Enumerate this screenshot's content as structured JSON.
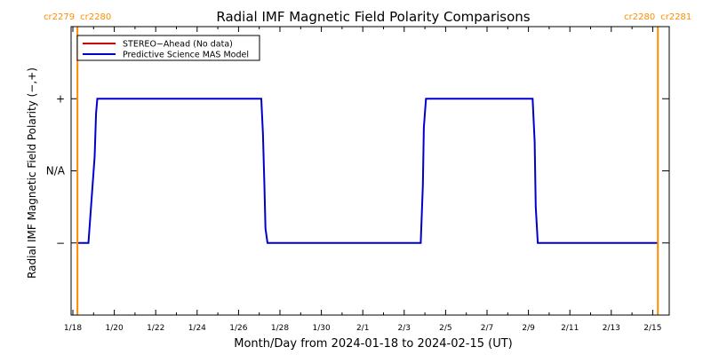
{
  "chart_data": {
    "type": "line",
    "title": "Radial IMF Magnetic Field Polarity Comparisons",
    "xlabel": "Month/Day from 2024-01-18 to 2024-02-15 (UT)",
    "ylabel": "Radial IMF Magnetic Field Polarity (−,+)",
    "x_start_date": "2024-01-18",
    "xlim_days": [
      0,
      29
    ],
    "x_ticks": [
      {
        "day": 0,
        "label": "1/18"
      },
      {
        "day": 2,
        "label": "1/20"
      },
      {
        "day": 4,
        "label": "1/22"
      },
      {
        "day": 6,
        "label": "1/24"
      },
      {
        "day": 8,
        "label": "1/26"
      },
      {
        "day": 10,
        "label": "1/28"
      },
      {
        "day": 12,
        "label": "1/30"
      },
      {
        "day": 14,
        "label": "2/1"
      },
      {
        "day": 16,
        "label": "2/3"
      },
      {
        "day": 18,
        "label": "2/5"
      },
      {
        "day": 20,
        "label": "2/7"
      },
      {
        "day": 22,
        "label": "2/9"
      },
      {
        "day": 24,
        "label": "2/11"
      },
      {
        "day": 26,
        "label": "2/13"
      },
      {
        "day": 28,
        "label": "2/15"
      }
    ],
    "ylim": [
      -2,
      2
    ],
    "y_ticks": [
      {
        "value": 1,
        "label": "+"
      },
      {
        "value": 0,
        "label": "N/A"
      },
      {
        "value": -1,
        "label": "−"
      }
    ],
    "series": [
      {
        "name": "STEREO−Ahead (No data)",
        "color": "#cc0000",
        "x": [],
        "y": []
      },
      {
        "name": "Predictive Science MAS Model",
        "color": "#0000cc",
        "x": [
          0.22,
          0.75,
          1.05,
          1.12,
          1.18,
          9.1,
          9.18,
          9.25,
          9.3,
          9.4,
          16.8,
          16.9,
          16.95,
          17.05,
          22.2,
          22.3,
          22.35,
          22.45,
          28.25
        ],
        "y": [
          -1,
          -1,
          0.2,
          0.8,
          1,
          1,
          0.5,
          -0.2,
          -0.8,
          -1,
          -1,
          -0.2,
          0.6,
          1,
          1,
          0.4,
          -0.5,
          -1,
          -1
        ]
      }
    ],
    "carrington_markers": [
      {
        "day": 0.22,
        "labels": [
          "cr2279",
          "cr2280"
        ],
        "color": "#ff8c00"
      },
      {
        "day": 28.25,
        "labels": [
          "cr2280",
          "cr2281"
        ],
        "color": "#ff8c00"
      }
    ],
    "legend_position": "top-left",
    "grid": false
  }
}
